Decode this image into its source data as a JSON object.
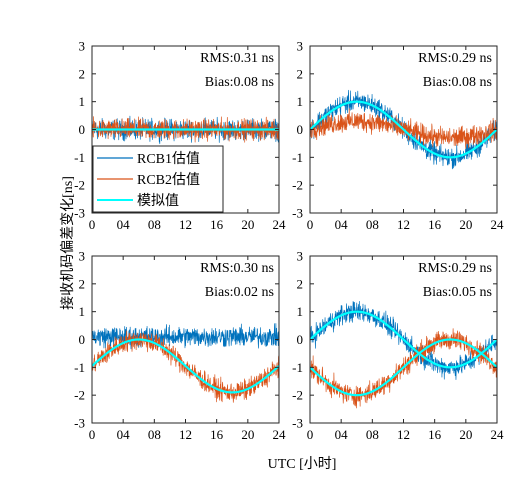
{
  "figure": {
    "xlabel": "UTC [小时]",
    "ylabel": "接收机码偏差变化[ns]"
  },
  "legend": {
    "entries": [
      {
        "label": "RCB1估值",
        "color": "#0072BD"
      },
      {
        "label": "RCB2估值",
        "color": "#D95319"
      },
      {
        "label": "模拟值",
        "color": "#00FFFF"
      }
    ]
  },
  "colors": {
    "rcb1": "#0072BD",
    "rcb2": "#D95319",
    "sim": "#00FFFF"
  },
  "chart_data": [
    {
      "type": "line",
      "position": "top-left",
      "xlim": [
        0,
        24
      ],
      "ylim": [
        -3,
        3
      ],
      "xticks": [
        0,
        4,
        8,
        12,
        16,
        20,
        24
      ],
      "xtick_labels": [
        "0",
        "04",
        "08",
        "12",
        "16",
        "20",
        "24"
      ],
      "yticks": [
        -3,
        -2,
        -1,
        0,
        1,
        2,
        3
      ],
      "ytick_labels": [
        "-3",
        "-2",
        "-1",
        "0",
        "1",
        "2",
        "3"
      ],
      "annotations": [
        "RMS:0.31 ns",
        "Bias:0.08 ns"
      ],
      "series": [
        {
          "name": "RCB1估值",
          "color": "#0072BD",
          "amplitude": 0,
          "phase_hours": 0,
          "offset": 0,
          "noise": 0.3
        },
        {
          "name": "RCB2估值",
          "color": "#D95319",
          "amplitude": 0,
          "phase_hours": 0,
          "offset": 0,
          "noise": 0.3
        },
        {
          "name": "模拟值",
          "color": "#00FFFF",
          "amplitude": 0,
          "phase_hours": 0,
          "offset": 0,
          "noise": 0
        }
      ]
    },
    {
      "type": "line",
      "position": "top-right",
      "xlim": [
        0,
        24
      ],
      "ylim": [
        -3,
        3
      ],
      "xticks": [
        0,
        4,
        8,
        12,
        16,
        20,
        24
      ],
      "xtick_labels": [
        "0",
        "04",
        "08",
        "12",
        "16",
        "20",
        "24"
      ],
      "yticks": [
        -3,
        -2,
        -1,
        0,
        1,
        2,
        3
      ],
      "ytick_labels": [
        "-3",
        "-2",
        "-1",
        "0",
        "1",
        "2",
        "3"
      ],
      "annotations": [
        "RMS:0.29 ns",
        "Bias:0.08 ns"
      ],
      "series": [
        {
          "name": "RCB1估值",
          "color": "#0072BD",
          "amplitude": 1.0,
          "phase_hours": 0,
          "offset": 0,
          "noise": 0.3
        },
        {
          "name": "RCB2估值",
          "color": "#D95319",
          "amplitude": 0.3,
          "phase_hours": 0,
          "offset": 0,
          "noise": 0.3
        },
        {
          "name": "模拟值",
          "color": "#00FFFF",
          "amplitude": 1.0,
          "phase_hours": 0,
          "offset": 0,
          "noise": 0
        }
      ]
    },
    {
      "type": "line",
      "position": "bottom-left",
      "xlim": [
        0,
        24
      ],
      "ylim": [
        -3,
        3
      ],
      "xticks": [
        0,
        4,
        8,
        12,
        16,
        20,
        24
      ],
      "xtick_labels": [
        "0",
        "04",
        "08",
        "12",
        "16",
        "20",
        "24"
      ],
      "yticks": [
        -3,
        -2,
        -1,
        0,
        1,
        2,
        3
      ],
      "ytick_labels": [
        "-3",
        "-2",
        "-1",
        "0",
        "1",
        "2",
        "3"
      ],
      "annotations": [
        "RMS:0.30 ns",
        "Bias:0.02 ns"
      ],
      "series": [
        {
          "name": "RCB1估值",
          "color": "#0072BD",
          "amplitude": 0,
          "phase_hours": 0,
          "offset": 0.1,
          "noise": 0.3
        },
        {
          "name": "RCB2估值",
          "color": "#D95319",
          "amplitude": 0.95,
          "phase_hours": 0,
          "offset": -0.95,
          "noise": 0.3
        },
        {
          "name": "模拟值",
          "color": "#00FFFF",
          "amplitude": 0.95,
          "phase_hours": 0,
          "offset": -0.95,
          "noise": 0
        }
      ]
    },
    {
      "type": "line",
      "position": "bottom-right",
      "xlim": [
        0,
        24
      ],
      "ylim": [
        -3,
        3
      ],
      "xticks": [
        0,
        4,
        8,
        12,
        16,
        20,
        24
      ],
      "xtick_labels": [
        "0",
        "04",
        "08",
        "12",
        "16",
        "20",
        "24"
      ],
      "yticks": [
        -3,
        -2,
        -1,
        0,
        1,
        2,
        3
      ],
      "ytick_labels": [
        "-3",
        "-2",
        "-1",
        "0",
        "1",
        "2",
        "3"
      ],
      "annotations": [
        "RMS:0.29 ns",
        "Bias:0.05 ns"
      ],
      "series": [
        {
          "name": "RCB1估值",
          "color": "#0072BD",
          "amplitude": 1.0,
          "phase_hours": 0,
          "offset": 0,
          "noise": 0.3
        },
        {
          "name": "RCB2估值",
          "color": "#D95319",
          "amplitude": -1.0,
          "phase_hours": 0,
          "offset": -1.0,
          "noise": 0.3
        },
        {
          "name": "模拟值",
          "color": "#00FFFF",
          "amplitude": 1.0,
          "phase_hours": 0,
          "offset": 0,
          "noise": 0
        },
        {
          "name": "模拟值",
          "color": "#00FFFF",
          "amplitude": -1.0,
          "phase_hours": 0,
          "offset": -1.0,
          "noise": 0
        }
      ]
    }
  ]
}
